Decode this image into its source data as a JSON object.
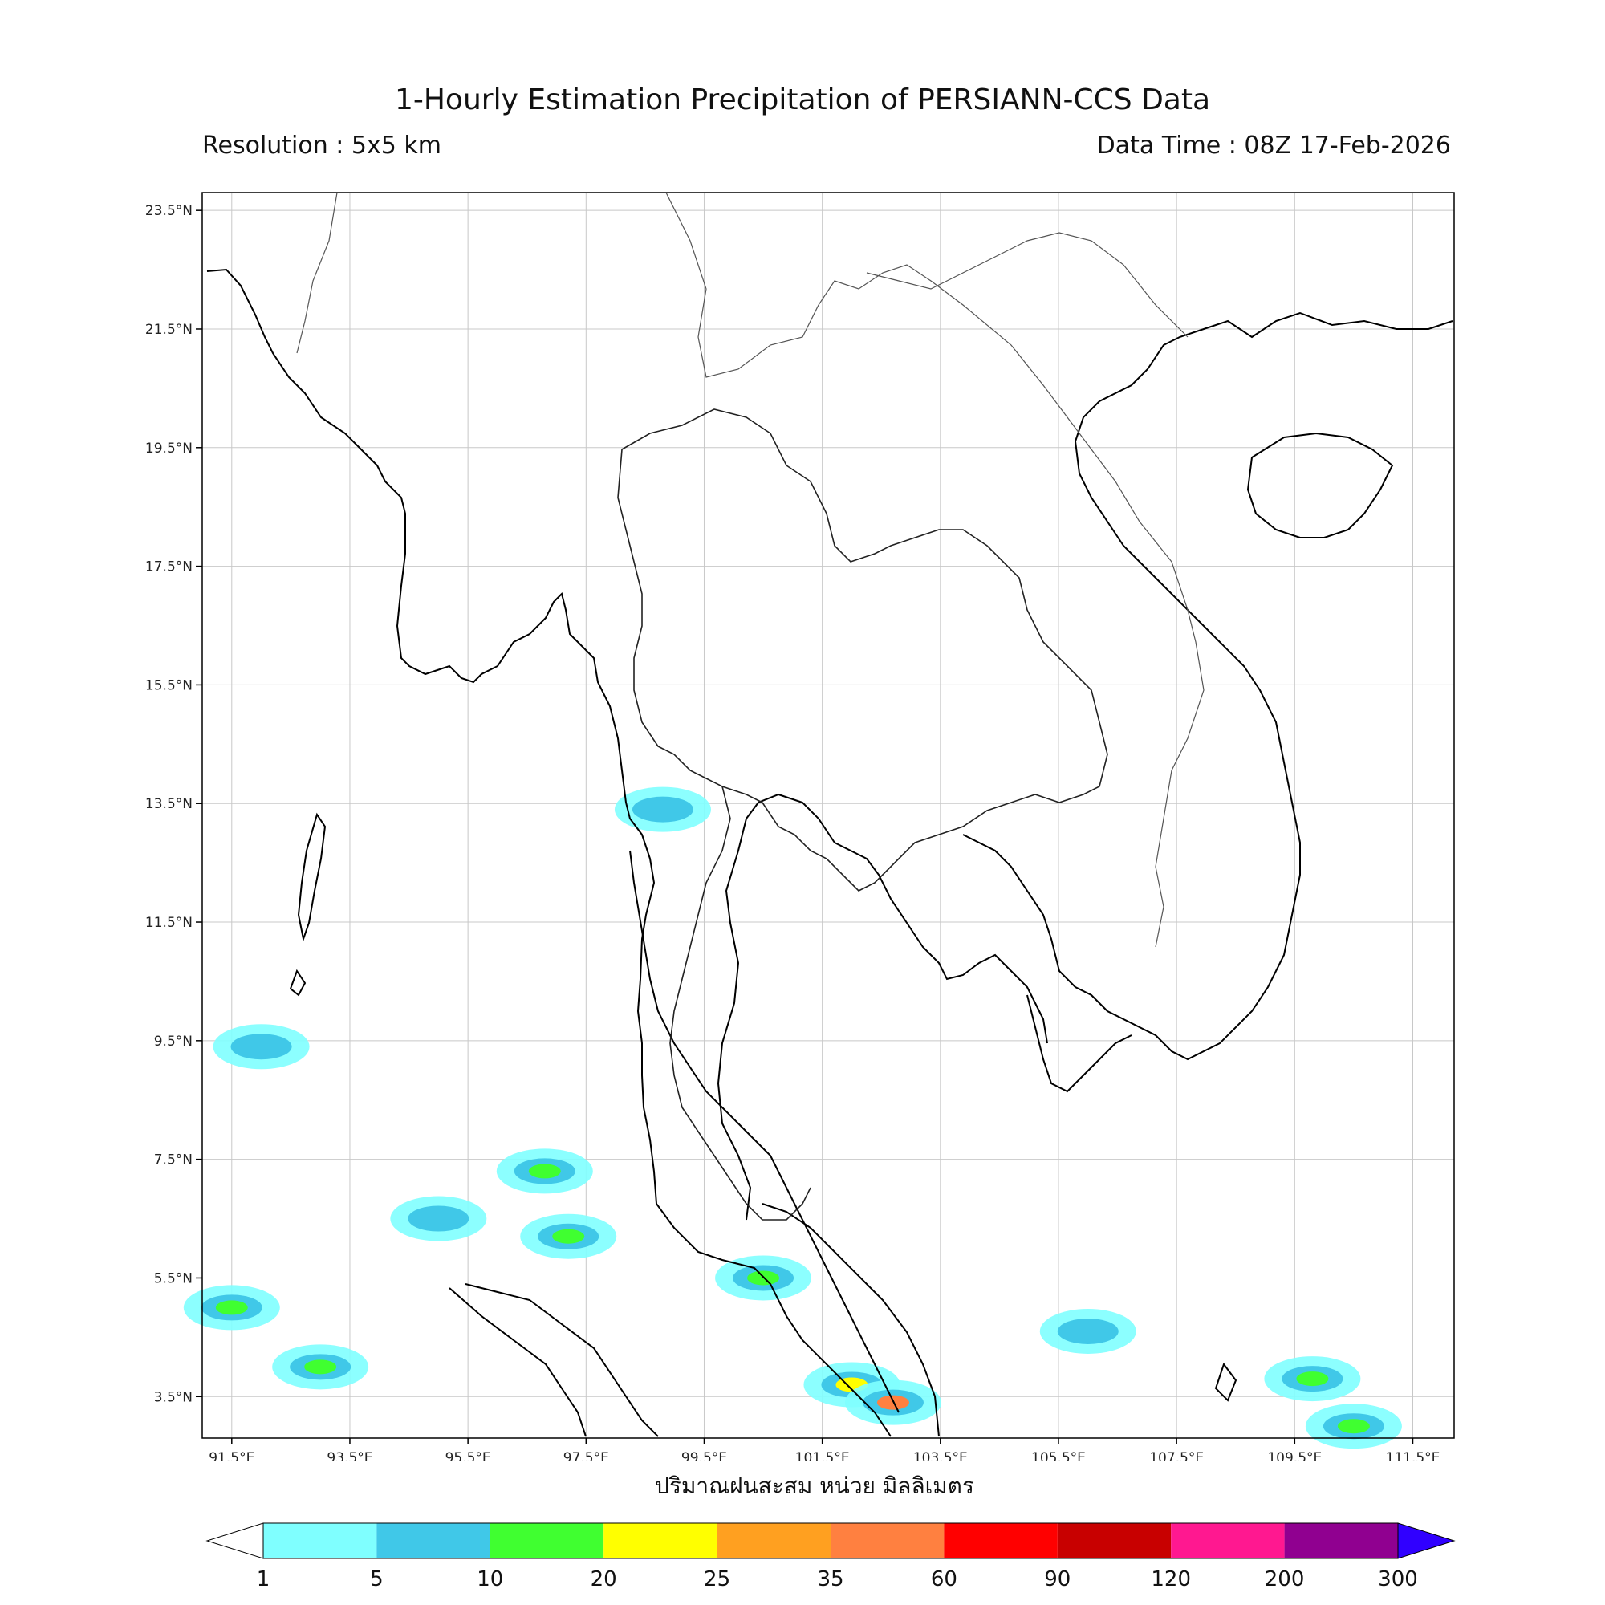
{
  "header": {
    "title": "1-Hourly Estimation Precipitation of PERSIANN-CCS Data",
    "resolution": "Resolution : 5x5 km",
    "data_time": "Data Time : 08Z 17-Feb-2026"
  },
  "map": {
    "lon_range": [
      91.0,
      112.2
    ],
    "lat_range": [
      2.8,
      23.8
    ],
    "lon_ticks": [
      "91.5°E",
      "93.5°E",
      "95.5°E",
      "97.5°E",
      "99.5°E",
      "101.5°E",
      "103.5°E",
      "105.5°E",
      "107.5°E",
      "109.5°E",
      "111.5°E"
    ],
    "lat_ticks": [
      "23.5°N",
      "21.5°N",
      "19.5°N",
      "17.5°N",
      "15.5°N",
      "13.5°N",
      "11.5°N",
      "9.5°N",
      "7.5°N",
      "5.5°N",
      "3.5°N"
    ],
    "grid": true,
    "unit_label": "ปริมาณฝนสะสม หน่วย มิลลิเมตร"
  },
  "colorbar": {
    "ticks": [
      "1",
      "5",
      "10",
      "20",
      "25",
      "35",
      "60",
      "90",
      "120",
      "200",
      "300"
    ],
    "colors": [
      "#7FFFFF",
      "#40C8E8",
      "#40FF30",
      "#FFFF00",
      "#FFA020",
      "#FF8040",
      "#FF0000",
      "#C80000",
      "#FF1890",
      "#900090",
      "#3000FF"
    ],
    "under_color": "#FFFFFF",
    "over_color": "#3000FF"
  },
  "rain_cells": [
    {
      "lon": 92.0,
      "lat": 9.4,
      "mm": 5
    },
    {
      "lon": 93.0,
      "lat": 4.0,
      "mm": 10
    },
    {
      "lon": 95.0,
      "lat": 6.5,
      "mm": 5
    },
    {
      "lon": 96.8,
      "lat": 7.3,
      "mm": 10
    },
    {
      "lon": 97.2,
      "lat": 6.2,
      "mm": 10
    },
    {
      "lon": 98.8,
      "lat": 13.4,
      "mm": 5
    },
    {
      "lon": 100.5,
      "lat": 5.5,
      "mm": 10
    },
    {
      "lon": 102.0,
      "lat": 3.7,
      "mm": 20
    },
    {
      "lon": 102.7,
      "lat": 3.4,
      "mm": 35
    },
    {
      "lon": 109.8,
      "lat": 3.8,
      "mm": 10
    },
    {
      "lon": 110.5,
      "lat": 3.0,
      "mm": 10
    },
    {
      "lon": 106.0,
      "lat": 4.6,
      "mm": 5
    },
    {
      "lon": 91.5,
      "lat": 5.0,
      "mm": 10
    }
  ]
}
